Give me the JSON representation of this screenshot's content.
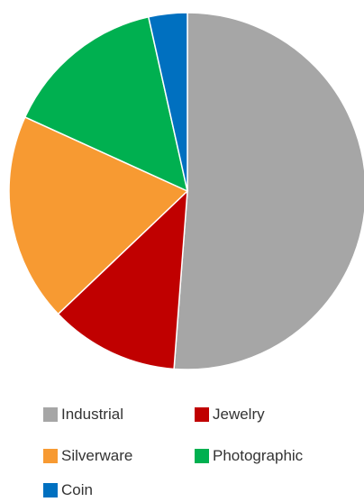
{
  "chart_data": {
    "type": "pie",
    "title": "",
    "legend_position": "bottom",
    "slices": [
      {
        "name": "Industrial",
        "value": 51.2,
        "color": "#A6A6A6"
      },
      {
        "name": "Jewelry",
        "value": 11.7,
        "color": "#C00000"
      },
      {
        "name": "Silverware",
        "value": 18.9,
        "color": "#F79A32"
      },
      {
        "name": "Photographic",
        "value": 14.7,
        "color": "#00B050"
      },
      {
        "name": "Coin",
        "value": 3.5,
        "color": "#0070C0"
      }
    ]
  }
}
